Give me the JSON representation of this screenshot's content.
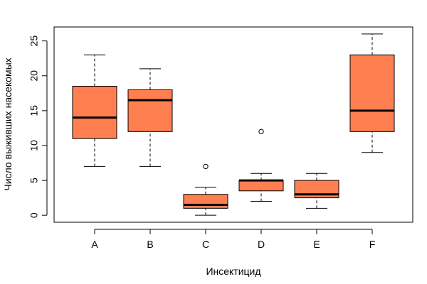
{
  "chart_data": {
    "type": "boxplot",
    "title": "",
    "xlabel": "Инсектицид",
    "ylabel": "Число выживших насекомых",
    "ylim": [
      -1,
      27
    ],
    "yticks": [
      0,
      5,
      10,
      15,
      20,
      25
    ],
    "grid": false,
    "box_color": "#FF7F50",
    "categories": [
      "A",
      "B",
      "C",
      "D",
      "E",
      "F"
    ],
    "boxes": [
      {
        "category": "A",
        "whisker_low": 7,
        "q1": 11,
        "median": 14,
        "q3": 18.5,
        "whisker_high": 23,
        "outliers": []
      },
      {
        "category": "B",
        "whisker_low": 7,
        "q1": 12,
        "median": 16.5,
        "q3": 18,
        "whisker_high": 21,
        "outliers": []
      },
      {
        "category": "C",
        "whisker_low": 0,
        "q1": 1,
        "median": 1.5,
        "q3": 3,
        "whisker_high": 4,
        "outliers": [
          7
        ]
      },
      {
        "category": "D",
        "whisker_low": 2,
        "q1": 3.5,
        "median": 5,
        "q3": 5,
        "whisker_high": 6,
        "outliers": [
          12
        ]
      },
      {
        "category": "E",
        "whisker_low": 1,
        "q1": 2.5,
        "median": 3,
        "q3": 5,
        "whisker_high": 6,
        "outliers": []
      },
      {
        "category": "F",
        "whisker_low": 9,
        "q1": 12,
        "median": 15,
        "q3": 23,
        "whisker_high": 26,
        "outliers": []
      }
    ]
  }
}
